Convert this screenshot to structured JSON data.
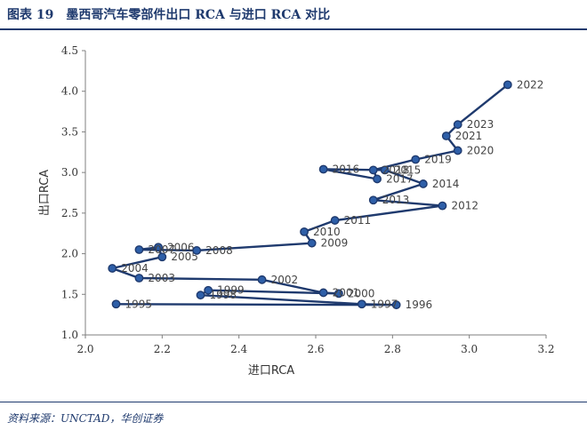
{
  "header": {
    "figure_no": "图表 19",
    "title": "墨西哥汽车零部件出口 RCA 与进口 RCA 对比"
  },
  "footer": {
    "source": "资料来源：UNCTAD，华创证券"
  },
  "colors": {
    "series": "#1f3a6e",
    "marker_fill": "#2e5fa8",
    "axis": "#7f7f7f"
  },
  "chart_data": {
    "type": "scatter",
    "connected": true,
    "title": "",
    "xlabel": "进口RCA",
    "ylabel": "出口RCA",
    "xlim": [
      2.0,
      3.2
    ],
    "ylim": [
      1.0,
      4.5
    ],
    "xticks": [
      "2.0",
      "2.2",
      "2.4",
      "2.6",
      "2.8",
      "3.0",
      "3.2"
    ],
    "yticks": [
      "1.0",
      "1.5",
      "2.0",
      "2.5",
      "3.0",
      "3.5",
      "4.0",
      "4.5"
    ],
    "grid": false,
    "points": [
      {
        "year": "1995",
        "x": 2.08,
        "y": 1.38
      },
      {
        "year": "1996",
        "x": 2.81,
        "y": 1.37
      },
      {
        "year": "1997",
        "x": 2.72,
        "y": 1.38
      },
      {
        "year": "1998",
        "x": 2.3,
        "y": 1.49
      },
      {
        "year": "1999",
        "x": 2.32,
        "y": 1.55
      },
      {
        "year": "2000",
        "x": 2.66,
        "y": 1.51
      },
      {
        "year": "2001",
        "x": 2.62,
        "y": 1.52
      },
      {
        "year": "2002",
        "x": 2.46,
        "y": 1.68
      },
      {
        "year": "2003",
        "x": 2.14,
        "y": 1.7
      },
      {
        "year": "2004",
        "x": 2.07,
        "y": 1.82
      },
      {
        "year": "2005",
        "x": 2.2,
        "y": 1.96
      },
      {
        "year": "2006",
        "x": 2.19,
        "y": 2.08
      },
      {
        "year": "2007",
        "x": 2.14,
        "y": 2.05
      },
      {
        "year": "2008",
        "x": 2.29,
        "y": 2.04
      },
      {
        "year": "2009",
        "x": 2.59,
        "y": 2.13
      },
      {
        "year": "2010",
        "x": 2.57,
        "y": 2.27
      },
      {
        "year": "2011",
        "x": 2.65,
        "y": 2.41
      },
      {
        "year": "2012",
        "x": 2.93,
        "y": 2.59
      },
      {
        "year": "2013",
        "x": 2.75,
        "y": 2.66
      },
      {
        "year": "2014",
        "x": 2.88,
        "y": 2.86
      },
      {
        "year": "2015",
        "x": 2.78,
        "y": 3.03
      },
      {
        "year": "2016",
        "x": 2.62,
        "y": 3.04
      },
      {
        "year": "2017",
        "x": 2.76,
        "y": 2.92
      },
      {
        "year": "2018",
        "x": 2.75,
        "y": 3.03
      },
      {
        "year": "2019",
        "x": 2.86,
        "y": 3.16
      },
      {
        "year": "2020",
        "x": 2.97,
        "y": 3.27
      },
      {
        "year": "2021",
        "x": 2.94,
        "y": 3.45
      },
      {
        "year": "2022",
        "x": 3.1,
        "y": 4.08
      },
      {
        "year": "2023",
        "x": 2.97,
        "y": 3.59
      }
    ],
    "path_order": [
      "1995",
      "1996",
      "1997",
      "1998",
      "1999",
      "2000",
      "2001",
      "2002",
      "2003",
      "2004",
      "2005",
      "2006",
      "2007",
      "2008",
      "2009",
      "2010",
      "2011",
      "2012",
      "2013",
      "2014",
      "2015",
      "2016",
      "2017",
      "2018",
      "2019",
      "2020",
      "2021",
      "2023",
      "2022"
    ]
  }
}
